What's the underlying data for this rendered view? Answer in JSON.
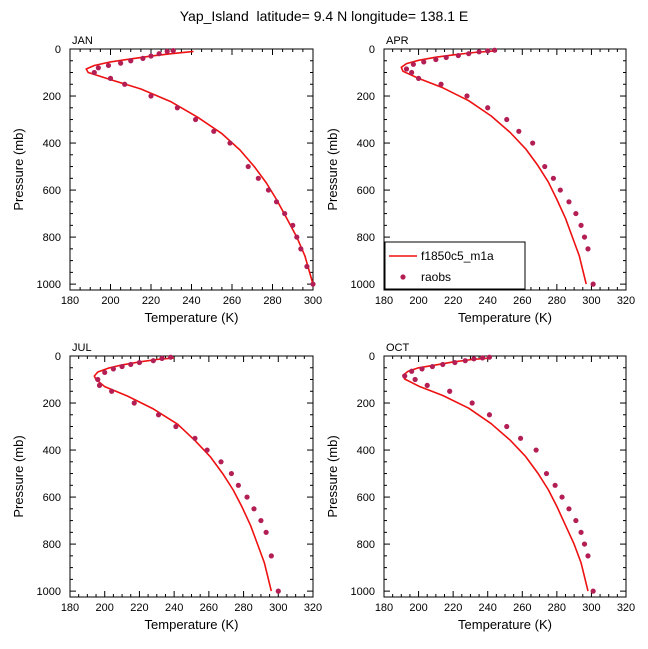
{
  "figure": {
    "title": "Yap_Island  latitude= 9.4 N longitude= 138.1 E"
  },
  "chart_data": [
    {
      "type": "line",
      "panel": "JAN",
      "xlabel": "Temperature (K)",
      "ylabel": "Pressure (mb)",
      "xlim": [
        180,
        300
      ],
      "ylim": [
        0,
        1025
      ],
      "y_inverted": true,
      "xticks": [
        "180",
        "200",
        "220",
        "240",
        "260",
        "280",
        "300"
      ],
      "yticks": [
        "0",
        "200",
        "400",
        "600",
        "800",
        "1000"
      ],
      "series": [
        {
          "name": "f1850c5_m1a",
          "style": "line",
          "color": "#ee1111",
          "x": [
            241,
            230,
            220,
            210,
            200,
            192,
            188,
            189,
            200,
            215,
            230,
            243,
            255,
            264,
            271,
            277,
            282,
            287,
            292,
            296,
            300
          ],
          "y": [
            10,
            20,
            30,
            42,
            55,
            70,
            85,
            100,
            130,
            170,
            225,
            290,
            360,
            430,
            500,
            570,
            640,
            720,
            800,
            880,
            1000
          ]
        },
        {
          "name": "raobs",
          "style": "markers",
          "color": "#b31f55",
          "x": [
            231,
            228,
            224,
            220,
            216,
            210,
            205,
            199,
            194,
            192,
            200,
            207,
            220,
            233,
            242,
            251,
            259,
            268,
            273,
            278,
            282,
            286,
            290,
            292,
            294,
            297,
            300
          ],
          "y": [
            7,
            10,
            20,
            30,
            40,
            50,
            60,
            70,
            80,
            100,
            125,
            150,
            200,
            250,
            300,
            350,
            400,
            500,
            550,
            600,
            650,
            700,
            750,
            800,
            850,
            925,
            1000
          ]
        }
      ]
    },
    {
      "type": "line",
      "panel": "APR",
      "xlabel": "Temperature (K)",
      "ylabel": "Pressure (mb)",
      "xlim": [
        180,
        320
      ],
      "ylim": [
        0,
        1025
      ],
      "y_inverted": true,
      "xticks": [
        "180",
        "200",
        "220",
        "240",
        "260",
        "280",
        "300",
        "320"
      ],
      "yticks": [
        "0",
        "200",
        "400",
        "600",
        "800",
        "1000"
      ],
      "legend": {
        "location": "bottom-left",
        "entries": [
          "f1850c5_m1a",
          "raobs"
        ]
      },
      "series": [
        {
          "name": "f1850c5_m1a",
          "style": "line",
          "color": "#ee1111",
          "x": [
            244,
            232,
            220,
            210,
            200,
            193,
            190,
            191,
            200,
            214,
            229,
            242,
            253,
            262,
            269,
            275,
            280,
            285,
            289,
            293,
            297
          ],
          "y": [
            8,
            15,
            25,
            35,
            48,
            62,
            78,
            95,
            125,
            165,
            220,
            285,
            355,
            425,
            495,
            565,
            640,
            720,
            800,
            880,
            1000
          ]
        },
        {
          "name": "raobs",
          "style": "markers",
          "color": "#b31f55",
          "x": [
            244,
            240,
            235,
            229,
            223,
            216,
            210,
            203,
            197,
            193,
            196,
            200,
            213,
            228,
            240,
            251,
            258,
            266,
            273,
            278,
            282,
            287,
            291,
            294,
            296,
            298,
            301
          ],
          "y": [
            5,
            8,
            12,
            20,
            28,
            36,
            45,
            55,
            65,
            85,
            100,
            125,
            150,
            200,
            250,
            300,
            350,
            400,
            500,
            550,
            600,
            650,
            700,
            750,
            800,
            850,
            1000
          ]
        }
      ]
    },
    {
      "type": "line",
      "panel": "JUL",
      "xlabel": "Temperature (K)",
      "ylabel": "Pressure (mb)",
      "xlim": [
        180,
        320
      ],
      "ylim": [
        0,
        1025
      ],
      "y_inverted": true,
      "xticks": [
        "180",
        "200",
        "220",
        "240",
        "260",
        "280",
        "300",
        "320"
      ],
      "yticks": [
        "0",
        "200",
        "400",
        "600",
        "800",
        "1000"
      ],
      "series": [
        {
          "name": "f1850c5_m1a",
          "style": "line",
          "color": "#ee1111",
          "x": [
            240,
            230,
            220,
            210,
            202,
            196,
            194,
            195,
            200,
            213,
            228,
            242,
            252,
            261,
            268,
            274,
            279,
            284,
            288,
            292,
            296
          ],
          "y": [
            8,
            15,
            25,
            38,
            52,
            68,
            85,
            100,
            130,
            170,
            225,
            290,
            360,
            430,
            500,
            570,
            640,
            720,
            800,
            880,
            1000
          ]
        },
        {
          "name": "raobs",
          "style": "markers",
          "color": "#b31f55",
          "x": [
            238,
            233,
            228,
            220,
            215,
            210,
            205,
            200,
            196,
            197,
            204,
            217,
            231,
            241,
            252,
            259,
            267,
            273,
            277,
            282,
            286,
            290,
            293,
            296,
            300
          ],
          "y": [
            5,
            10,
            20,
            28,
            36,
            45,
            55,
            70,
            100,
            125,
            150,
            200,
            250,
            300,
            350,
            400,
            450,
            500,
            550,
            600,
            650,
            700,
            750,
            850,
            1000
          ]
        }
      ]
    },
    {
      "type": "line",
      "panel": "OCT",
      "xlabel": "Temperature (K)",
      "ylabel": "Pressure (mb)",
      "xlim": [
        180,
        320
      ],
      "ylim": [
        0,
        1025
      ],
      "y_inverted": true,
      "xticks": [
        "180",
        "200",
        "220",
        "240",
        "260",
        "280",
        "300",
        "320"
      ],
      "yticks": [
        "0",
        "200",
        "400",
        "600",
        "800",
        "1000"
      ],
      "series": [
        {
          "name": "f1850c5_m1a",
          "style": "line",
          "color": "#ee1111",
          "x": [
            242,
            231,
            220,
            210,
            200,
            194,
            191,
            192,
            200,
            214,
            229,
            242,
            253,
            262,
            269,
            275,
            280,
            285,
            290,
            294,
            298
          ],
          "y": [
            8,
            15,
            25,
            38,
            50,
            65,
            82,
            98,
            128,
            168,
            222,
            288,
            358,
            428,
            498,
            568,
            640,
            720,
            800,
            880,
            1000
          ]
        },
        {
          "name": "raobs",
          "style": "markers",
          "color": "#b31f55",
          "x": [
            241,
            237,
            232,
            227,
            221,
            214,
            208,
            202,
            196,
            192,
            198,
            205,
            218,
            231,
            241,
            251,
            259,
            268,
            274,
            279,
            283,
            287,
            291,
            294,
            296,
            298,
            301
          ],
          "y": [
            5,
            8,
            12,
            20,
            28,
            36,
            45,
            55,
            65,
            85,
            100,
            125,
            150,
            200,
            250,
            300,
            350,
            400,
            500,
            550,
            600,
            650,
            700,
            750,
            800,
            850,
            1000
          ]
        }
      ]
    }
  ]
}
